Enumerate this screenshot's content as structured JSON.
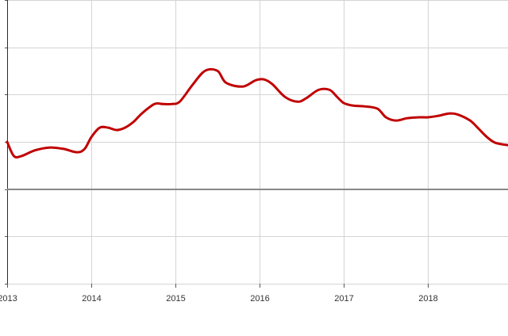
{
  "chart_data": {
    "type": "line",
    "title": "",
    "xlabel": "",
    "ylabel": "",
    "x_ticks": [
      "2013",
      "2014",
      "2015",
      "2016",
      "2017",
      "2018"
    ],
    "xlim": [
      2013.0,
      2018.95
    ],
    "ylim": [
      -2,
      4
    ],
    "y_gridlines": [
      -2,
      -1,
      0,
      1,
      2,
      3,
      4
    ],
    "zero_line": 0,
    "grid": true,
    "legend": "none",
    "series_color": "#c00000",
    "series": [
      {
        "x": [
          2013.0,
          2013.08,
          2013.17,
          2013.33,
          2013.5,
          2013.67,
          2013.83,
          2013.92,
          2014.0,
          2014.1,
          2014.2,
          2014.3,
          2014.4,
          2014.5,
          2014.6,
          2014.75,
          2014.85,
          2014.95,
          2015.05,
          2015.2,
          2015.35,
          2015.5,
          2015.6,
          2015.8,
          2015.95,
          2016.05,
          2016.15,
          2016.3,
          2016.45,
          2016.55,
          2016.7,
          2016.83,
          2016.92,
          2017.0,
          2017.1,
          2017.25,
          2017.4,
          2017.5,
          2017.62,
          2017.75,
          2017.9,
          2018.0,
          2018.12,
          2018.25,
          2018.35,
          2018.5,
          2018.6,
          2018.7,
          2018.8,
          2018.95
        ],
        "y": [
          1.0,
          0.7,
          0.7,
          0.82,
          0.88,
          0.85,
          0.78,
          0.85,
          1.1,
          1.3,
          1.3,
          1.25,
          1.3,
          1.42,
          1.6,
          1.8,
          1.8,
          1.8,
          1.85,
          2.2,
          2.5,
          2.5,
          2.25,
          2.17,
          2.3,
          2.32,
          2.22,
          1.95,
          1.85,
          1.92,
          2.1,
          2.1,
          1.95,
          1.82,
          1.77,
          1.75,
          1.7,
          1.52,
          1.45,
          1.5,
          1.52,
          1.52,
          1.55,
          1.6,
          1.58,
          1.45,
          1.28,
          1.1,
          0.98,
          0.93
        ]
      }
    ]
  }
}
